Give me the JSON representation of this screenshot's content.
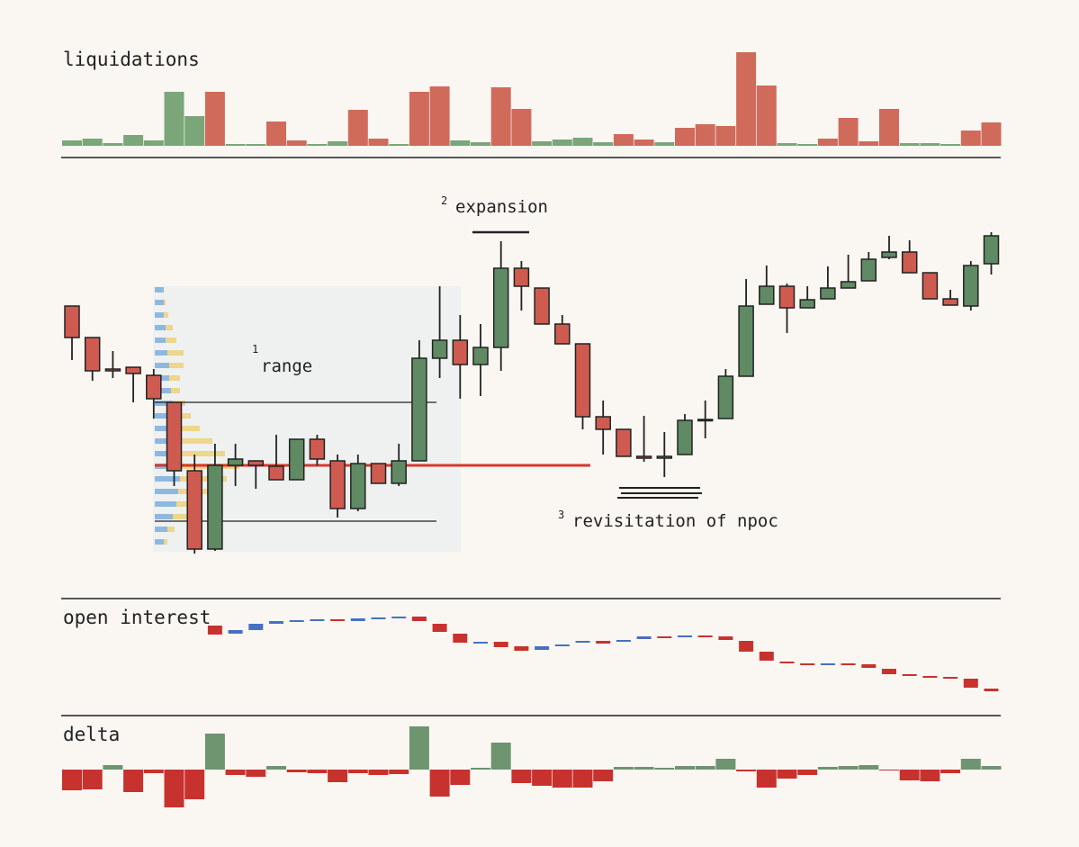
{
  "chart_data": [
    {
      "type": "bar",
      "title": "liquidations",
      "ylim": [
        0,
        110
      ],
      "values": [
        6,
        8,
        3,
        12,
        6,
        60,
        33,
        60,
        2,
        2,
        27,
        6,
        2,
        5,
        40,
        8,
        2,
        60,
        66,
        6,
        4,
        65,
        41,
        5,
        7,
        9,
        4,
        13,
        7,
        4,
        20,
        24,
        22,
        104,
        67,
        3,
        2,
        8,
        31,
        5,
        41,
        3,
        3,
        2,
        17,
        26
      ],
      "colors": [
        "#7aa67a",
        "#7aa67a",
        "#7aa67a",
        "#7aa67a",
        "#7aa67a",
        "#7aa67a",
        "#7aa67a",
        "#d06b5c",
        "#7aa67a",
        "#7aa67a",
        "#d06b5c",
        "#d06b5c",
        "#7aa67a",
        "#7aa67a",
        "#d06b5c",
        "#d06b5c",
        "#7aa67a",
        "#d06b5c",
        "#d06b5c",
        "#7aa67a",
        "#7aa67a",
        "#d06b5c",
        "#d06b5c",
        "#7aa67a",
        "#7aa67a",
        "#7aa67a",
        "#7aa67a",
        "#d06b5c",
        "#d06b5c",
        "#7aa67a",
        "#d06b5c",
        "#d06b5c",
        "#d06b5c",
        "#d06b5c",
        "#d06b5c",
        "#7aa67a",
        "#7aa67a",
        "#d06b5c",
        "#d06b5c",
        "#d06b5c",
        "#d06b5c",
        "#7aa67a",
        "#7aa67a",
        "#7aa67a",
        "#d06b5c",
        "#d06b5c"
      ]
    },
    {
      "type": "candlestick",
      "ylim": [
        80,
        450
      ],
      "up_color": "#5f8a63",
      "down_color": "#cf5b50",
      "open": [
        360,
        325,
        290,
        292,
        283,
        253,
        177,
        90,
        183,
        188,
        182,
        167,
        212,
        188,
        135,
        185,
        163,
        188,
        302,
        322,
        295,
        314,
        402,
        380,
        340,
        318,
        237,
        223,
        193,
        191,
        195,
        233,
        235,
        282,
        362,
        382,
        358,
        368,
        380,
        388,
        414,
        420,
        397,
        368,
        360,
        407
      ],
      "close": [
        325,
        288,
        288,
        285,
        257,
        177,
        90,
        183,
        190,
        183,
        167,
        212,
        190,
        135,
        185,
        163,
        188,
        302,
        322,
        295,
        314,
        402,
        382,
        340,
        318,
        237,
        223,
        193,
        191,
        193,
        233,
        234,
        282,
        360,
        382,
        358,
        367,
        380,
        387,
        412,
        420,
        397,
        368,
        361,
        405,
        438
      ],
      "high": [
        360,
        325,
        310,
        292,
        290,
        253,
        195,
        207,
        207,
        188,
        217,
        212,
        217,
        195,
        195,
        185,
        207,
        322,
        382,
        350,
        340,
        432,
        410,
        380,
        350,
        318,
        255,
        223,
        238,
        220,
        240,
        255,
        290,
        390,
        405,
        385,
        382,
        404,
        417,
        420,
        438,
        433,
        397,
        378,
        410,
        442
      ],
      "low": [
        300,
        277,
        280,
        253,
        235,
        160,
        85,
        88,
        160,
        157,
        167,
        167,
        183,
        125,
        132,
        163,
        160,
        188,
        280,
        257,
        260,
        288,
        355,
        340,
        318,
        223,
        195,
        193,
        187,
        170,
        195,
        213,
        235,
        282,
        362,
        330,
        358,
        368,
        380,
        388,
        412,
        397,
        368,
        361,
        355,
        395
      ],
      "range_top": 253,
      "range_bottom": 121,
      "npoc": 183,
      "box": {
        "top": 382,
        "bottom": 87
      },
      "volume_profile": {
        "prices": [
          378,
          364,
          350,
          336,
          322,
          308,
          294,
          280,
          266,
          252,
          238,
          224,
          210,
          196,
          182,
          168,
          154,
          140,
          126,
          112,
          98
        ],
        "blue": [
          10,
          10,
          10,
          12,
          12,
          14,
          16,
          16,
          18,
          20,
          20,
          22,
          26,
          28,
          30,
          28,
          26,
          24,
          20,
          14,
          10
        ],
        "yellow": [
          0,
          2,
          5,
          8,
          12,
          18,
          16,
          12,
          10,
          14,
          20,
          28,
          38,
          50,
          64,
          52,
          38,
          26,
          16,
          8,
          4
        ]
      },
      "annotations": [
        {
          "number": "1",
          "text": "range"
        },
        {
          "number": "2",
          "text": "expansion"
        },
        {
          "number": "3",
          "text": "revisitation of npoc"
        }
      ]
    },
    {
      "type": "oi",
      "title": "open interest",
      "ylim": [
        20,
        120
      ],
      "up_color": "#4a6fbf",
      "down_color": "#c8322e",
      "open": [
        null,
        null,
        null,
        null,
        null,
        null,
        null,
        105,
        96,
        100,
        107,
        110,
        111,
        112,
        110,
        113,
        114,
        115,
        107,
        96,
        86,
        87,
        82,
        78,
        82,
        86,
        88,
        87,
        90,
        93,
        93,
        94,
        93,
        88,
        76,
        65,
        63,
        62,
        63,
        62,
        57,
        51,
        49,
        48,
        46,
        35
      ],
      "close": [
        null,
        null,
        null,
        null,
        null,
        null,
        null,
        95,
        100,
        107,
        110,
        111,
        112,
        110,
        113,
        114,
        115,
        110,
        98,
        86,
        87,
        81,
        77,
        82,
        84,
        88,
        85,
        89,
        93,
        92,
        94,
        93,
        89,
        76,
        66,
        63,
        62,
        63,
        62,
        58,
        51,
        49,
        48,
        46,
        36,
        32
      ]
    },
    {
      "type": "delta",
      "title": "delta",
      "ylim": [
        -50,
        50
      ],
      "up_color": "#6e9470",
      "down_color": "#c8322e",
      "values": [
        -23,
        -22,
        5,
        -25,
        -4,
        -42,
        -33,
        40,
        -6,
        -8,
        4,
        -3,
        -4,
        -14,
        -4,
        -6,
        -5,
        48,
        -30,
        -17,
        2,
        30,
        -15,
        -18,
        -20,
        -20,
        -13,
        3,
        3,
        2,
        4,
        4,
        12,
        -2,
        -20,
        -10,
        -6,
        3,
        4,
        5,
        -1,
        -12,
        -13,
        -4,
        12,
        4
      ]
    }
  ]
}
